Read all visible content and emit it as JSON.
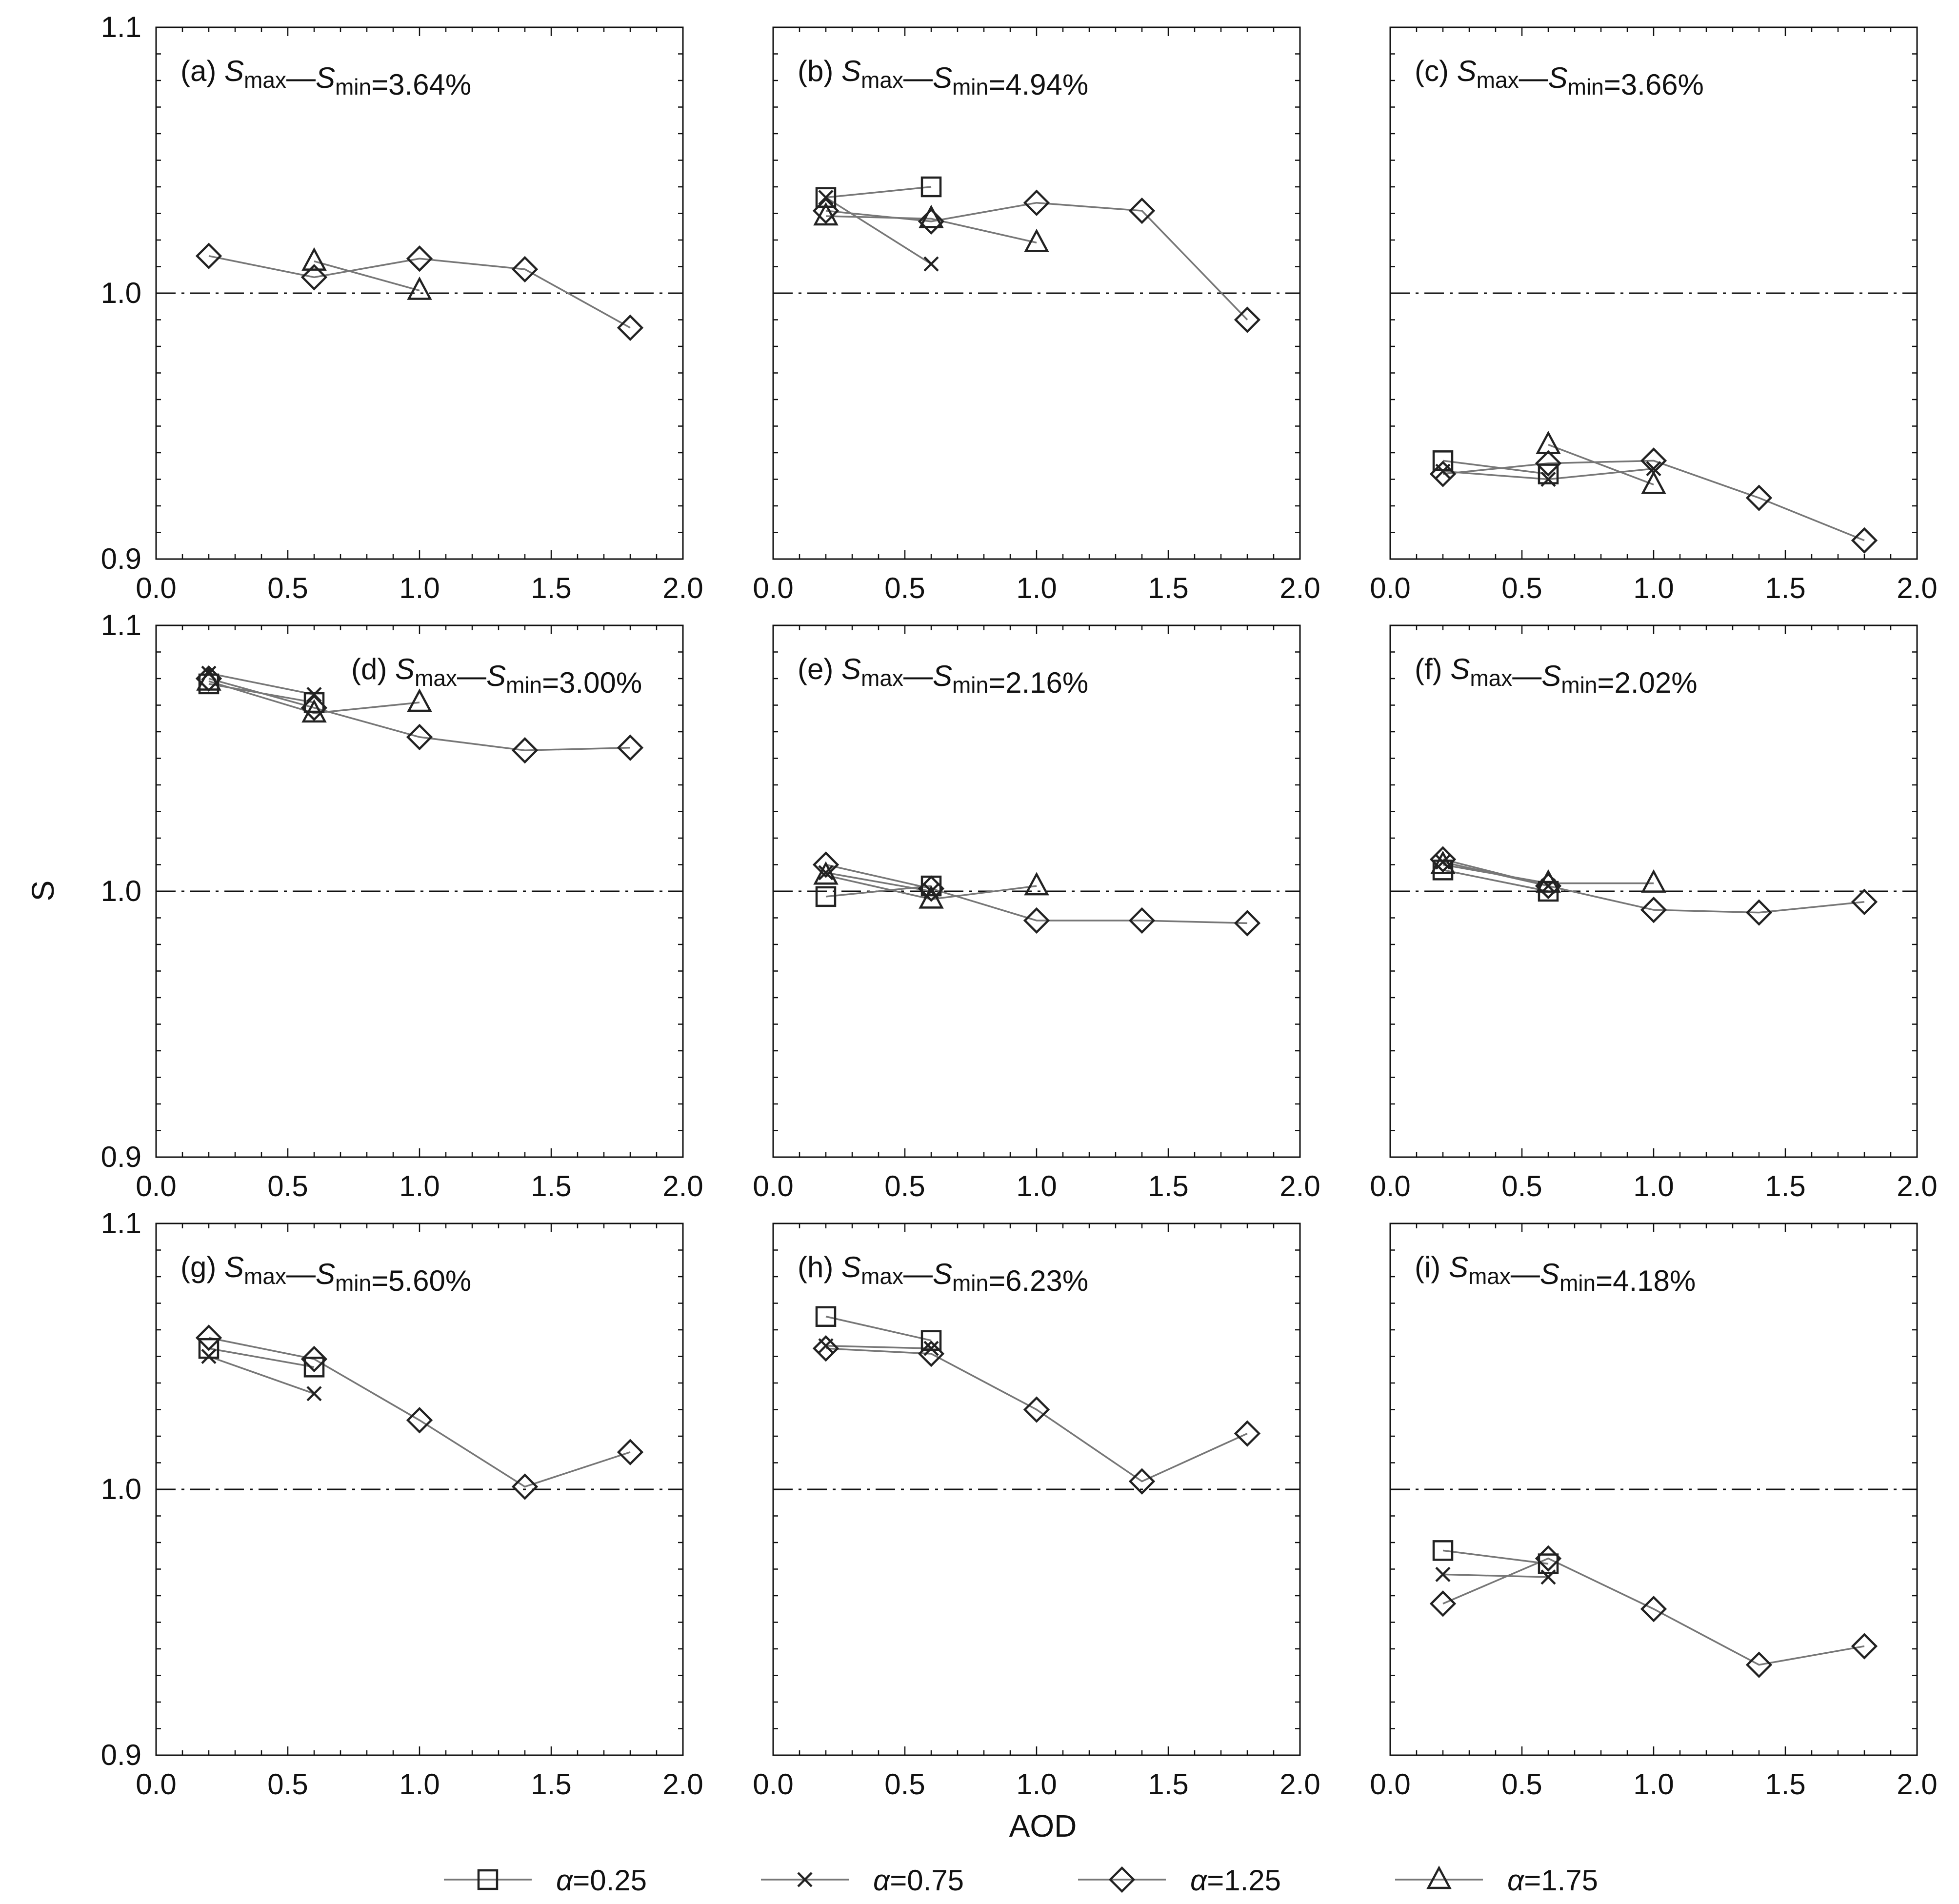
{
  "figure": {
    "y_axis_label": "S",
    "x_axis_label": "AOD",
    "line_color": "#777777",
    "marker_color": "#222222",
    "reference_line_color": "#111111"
  },
  "legend": [
    {
      "label": "α=0.25",
      "marker": "square"
    },
    {
      "label": "α=0.75",
      "marker": "cross"
    },
    {
      "label": "α=1.25",
      "marker": "diamond"
    },
    {
      "label": "α=1.75",
      "marker": "triangle"
    }
  ],
  "chart_data": [
    {
      "type": "line",
      "panel": "(a)",
      "diff_value": "=3.64%",
      "xlim": [
        0,
        2
      ],
      "ylim": [
        0.9,
        1.1
      ],
      "reference_y": 1.0,
      "xticks": [
        "0.0",
        "0.5",
        "1.0",
        "1.5",
        "2.0"
      ],
      "yticks": [
        "0.9",
        "1.0",
        "1.1"
      ],
      "series": [
        {
          "name": "α=1.25",
          "marker": "diamond",
          "x": [
            0.2,
            0.6,
            1.0,
            1.4,
            1.8
          ],
          "y": [
            1.014,
            1.006,
            1.013,
            1.009,
            0.987
          ]
        },
        {
          "name": "α=1.75",
          "marker": "triangle",
          "x": [
            0.6,
            1.0
          ],
          "y": [
            1.012,
            1.001
          ]
        }
      ]
    },
    {
      "type": "line",
      "panel": "(b)",
      "diff_value": "=4.94%",
      "xlim": [
        0,
        2
      ],
      "ylim": [
        0.9,
        1.1
      ],
      "reference_y": 1.0,
      "xticks": [
        "0.0",
        "0.5",
        "1.0",
        "1.5",
        "2.0"
      ],
      "yticks": [],
      "series": [
        {
          "name": "α=0.25",
          "marker": "square",
          "x": [
            0.2,
            0.6
          ],
          "y": [
            1.036,
            1.04
          ]
        },
        {
          "name": "α=0.75",
          "marker": "cross",
          "x": [
            0.2,
            0.6
          ],
          "y": [
            1.036,
            1.011
          ]
        },
        {
          "name": "α=1.25",
          "marker": "diamond",
          "x": [
            0.2,
            0.6,
            1.0,
            1.4,
            1.8
          ],
          "y": [
            1.031,
            1.027,
            1.034,
            1.031,
            0.99
          ]
        },
        {
          "name": "α=1.75",
          "marker": "triangle",
          "x": [
            0.2,
            0.6,
            1.0
          ],
          "y": [
            1.029,
            1.028,
            1.019
          ]
        }
      ]
    },
    {
      "type": "line",
      "panel": "(c)",
      "diff_value": "=3.66%",
      "xlim": [
        0,
        2
      ],
      "ylim": [
        0.9,
        1.1
      ],
      "reference_y": 1.0,
      "xticks": [
        "0.0",
        "0.5",
        "1.0",
        "1.5",
        "2.0"
      ],
      "yticks": [],
      "series": [
        {
          "name": "α=0.25",
          "marker": "square",
          "x": [
            0.2,
            0.6
          ],
          "y": [
            0.937,
            0.932
          ]
        },
        {
          "name": "α=0.75",
          "marker": "cross",
          "x": [
            0.2,
            0.6,
            1.0
          ],
          "y": [
            0.933,
            0.93,
            0.934
          ]
        },
        {
          "name": "α=1.25",
          "marker": "diamond",
          "x": [
            0.2,
            0.6,
            1.0,
            1.4,
            1.8
          ],
          "y": [
            0.932,
            0.936,
            0.937,
            0.923,
            0.907
          ]
        },
        {
          "name": "α=1.75",
          "marker": "triangle",
          "x": [
            0.6,
            1.0
          ],
          "y": [
            0.943,
            0.928
          ]
        }
      ]
    },
    {
      "type": "line",
      "panel": "(d)",
      "diff_value": "=3.00%",
      "xlim": [
        0,
        2
      ],
      "ylim": [
        0.9,
        1.1
      ],
      "reference_y": 1.0,
      "xticks": [
        "0.0",
        "0.5",
        "1.0",
        "1.5",
        "2.0"
      ],
      "yticks": [
        "0.9",
        "1.0",
        "1.1"
      ],
      "series": [
        {
          "name": "α=0.25",
          "marker": "square",
          "x": [
            0.2,
            0.6
          ],
          "y": [
            1.078,
            1.071
          ]
        },
        {
          "name": "α=0.75",
          "marker": "cross",
          "x": [
            0.2,
            0.6
          ],
          "y": [
            1.082,
            1.074
          ]
        },
        {
          "name": "α=1.25",
          "marker": "diamond",
          "x": [
            0.2,
            0.6,
            1.0,
            1.4,
            1.8
          ],
          "y": [
            1.08,
            1.069,
            1.058,
            1.053,
            1.054
          ]
        },
        {
          "name": "α=1.75",
          "marker": "triangle",
          "x": [
            0.2,
            0.6,
            1.0
          ],
          "y": [
            1.079,
            1.067,
            1.071
          ]
        }
      ]
    },
    {
      "type": "line",
      "panel": "(e)",
      "diff_value": "=2.16%",
      "xlim": [
        0,
        2
      ],
      "ylim": [
        0.9,
        1.1
      ],
      "reference_y": 1.0,
      "xticks": [
        "0.0",
        "0.5",
        "1.0",
        "1.5",
        "2.0"
      ],
      "yticks": [],
      "series": [
        {
          "name": "α=0.25",
          "marker": "square",
          "x": [
            0.2,
            0.6
          ],
          "y": [
            0.998,
            1.002
          ]
        },
        {
          "name": "α=0.75",
          "marker": "cross",
          "x": [
            0.2,
            0.6
          ],
          "y": [
            1.007,
            1.0
          ]
        },
        {
          "name": "α=1.25",
          "marker": "diamond",
          "x": [
            0.2,
            0.6,
            1.0,
            1.4,
            1.8
          ],
          "y": [
            1.01,
            1.001,
            0.989,
            0.989,
            0.988
          ]
        },
        {
          "name": "α=1.75",
          "marker": "triangle",
          "x": [
            0.2,
            0.6,
            1.0
          ],
          "y": [
            1.006,
            0.997,
            1.002
          ]
        }
      ]
    },
    {
      "type": "line",
      "panel": "(f)",
      "diff_value": "=2.02%",
      "xlim": [
        0,
        2
      ],
      "ylim": [
        0.9,
        1.1
      ],
      "reference_y": 1.0,
      "xticks": [
        "0.0",
        "0.5",
        "1.0",
        "1.5",
        "2.0"
      ],
      "yticks": [],
      "series": [
        {
          "name": "α=0.25",
          "marker": "square",
          "x": [
            0.2,
            0.6
          ],
          "y": [
            1.008,
            1.0
          ]
        },
        {
          "name": "α=0.75",
          "marker": "cross",
          "x": [
            0.2,
            0.6
          ],
          "y": [
            1.011,
            1.002
          ]
        },
        {
          "name": "α=1.25",
          "marker": "diamond",
          "x": [
            0.2,
            0.6,
            1.0,
            1.4,
            1.8
          ],
          "y": [
            1.012,
            1.002,
            0.993,
            0.992,
            0.996
          ]
        },
        {
          "name": "α=1.75",
          "marker": "triangle",
          "x": [
            0.2,
            0.6,
            1.0
          ],
          "y": [
            1.01,
            1.003,
            1.003
          ]
        }
      ]
    },
    {
      "type": "line",
      "panel": "(g)",
      "diff_value": "=5.60%",
      "xlim": [
        0,
        2
      ],
      "ylim": [
        0.9,
        1.1
      ],
      "reference_y": 1.0,
      "xticks": [
        "0.0",
        "0.5",
        "1.0",
        "1.5",
        "2.0"
      ],
      "yticks": [
        "0.9",
        "1.0",
        "1.1"
      ],
      "series": [
        {
          "name": "α=0.25",
          "marker": "square",
          "x": [
            0.2,
            0.6
          ],
          "y": [
            1.053,
            1.046
          ]
        },
        {
          "name": "α=0.75",
          "marker": "cross",
          "x": [
            0.2,
            0.6
          ],
          "y": [
            1.05,
            1.036
          ]
        },
        {
          "name": "α=1.25",
          "marker": "diamond",
          "x": [
            0.2,
            0.6,
            1.0,
            1.4,
            1.8
          ],
          "y": [
            1.057,
            1.049,
            1.026,
            1.001,
            1.014
          ]
        }
      ]
    },
    {
      "type": "line",
      "panel": "(h)",
      "diff_value": "=6.23%",
      "xlim": [
        0,
        2
      ],
      "ylim": [
        0.9,
        1.1
      ],
      "reference_y": 1.0,
      "xticks": [
        "0.0",
        "0.5",
        "1.0",
        "1.5",
        "2.0"
      ],
      "yticks": [],
      "series": [
        {
          "name": "α=0.25",
          "marker": "square",
          "x": [
            0.2,
            0.6
          ],
          "y": [
            1.065,
            1.056
          ]
        },
        {
          "name": "α=0.75",
          "marker": "cross",
          "x": [
            0.2,
            0.6
          ],
          "y": [
            1.054,
            1.053
          ]
        },
        {
          "name": "α=1.25",
          "marker": "diamond",
          "x": [
            0.2,
            0.6,
            1.0,
            1.4,
            1.8
          ],
          "y": [
            1.053,
            1.051,
            1.03,
            1.003,
            1.021
          ]
        }
      ]
    },
    {
      "type": "line",
      "panel": "(i)",
      "diff_value": "=4.18%",
      "xlim": [
        0,
        2
      ],
      "ylim": [
        0.9,
        1.1
      ],
      "reference_y": 1.0,
      "xticks": [
        "0.0",
        "0.5",
        "1.0",
        "1.5",
        "2.0"
      ],
      "yticks": [],
      "series": [
        {
          "name": "α=0.25",
          "marker": "square",
          "x": [
            0.2,
            0.6
          ],
          "y": [
            0.977,
            0.972
          ]
        },
        {
          "name": "α=0.75",
          "marker": "cross",
          "x": [
            0.2,
            0.6
          ],
          "y": [
            0.968,
            0.967
          ]
        },
        {
          "name": "α=1.25",
          "marker": "diamond",
          "x": [
            0.2,
            0.6,
            1.0,
            1.4,
            1.8
          ],
          "y": [
            0.957,
            0.974,
            0.955,
            0.934,
            0.941
          ]
        }
      ]
    }
  ]
}
